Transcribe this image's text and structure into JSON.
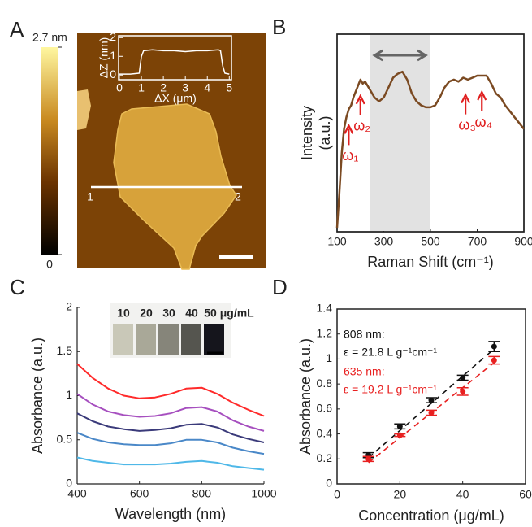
{
  "chart_data": [
    {
      "type": "afm",
      "label": "A",
      "colorbar": {
        "lim": [
          0,
          2.7
        ],
        "ticks": [
          0,
          {
            "value": 2.7,
            "label": "2.7 nm"
          }
        ]
      },
      "line_labels": [
        "1",
        "2"
      ],
      "inset": {
        "type": "line",
        "color": "#ffffff",
        "x": [
          0,
          0.5,
          0.9,
          1.0,
          1.1,
          1.5,
          2,
          2.5,
          3,
          3.5,
          4,
          4.5,
          4.6,
          4.7,
          4.8,
          5
        ],
        "values": [
          0.05,
          0.05,
          0.1,
          1.0,
          1.3,
          1.35,
          1.3,
          1.3,
          1.25,
          1.3,
          1.3,
          1.35,
          1.3,
          0.5,
          0.1,
          0.05
        ],
        "xlim": [
          0,
          5.1
        ],
        "xticks": [
          0,
          1,
          2,
          3,
          4,
          5
        ],
        "ylim": [
          -0.25,
          2.1
        ],
        "yticks": [
          0,
          1,
          2
        ],
        "xlabel": "ΔX (μm)",
        "ylabel": "ΔZ (nm)"
      }
    },
    {
      "type": "line",
      "label": "B",
      "xlabel": "Raman Shift (cm⁻¹)",
      "ylabel": [
        "Intensity",
        "(a.u.)"
      ],
      "xlim": [
        100,
        900
      ],
      "xticks": [
        100,
        300,
        500,
        700,
        900
      ],
      "ylim": [
        0,
        1
      ],
      "highlight": [
        240,
        500
      ],
      "series": [
        {
          "color": "#7b4a22",
          "x": [
            100,
            110,
            120,
            130,
            140,
            150,
            160,
            170,
            180,
            190,
            200,
            210,
            220,
            240,
            260,
            280,
            300,
            320,
            340,
            360,
            380,
            400,
            420,
            440,
            460,
            480,
            500,
            520,
            540,
            560,
            580,
            600,
            620,
            640,
            660,
            680,
            700,
            720,
            740,
            760,
            780,
            800,
            820,
            840,
            860,
            880,
            900
          ],
          "values": [
            0.02,
            0.2,
            0.4,
            0.52,
            0.58,
            0.62,
            0.64,
            0.68,
            0.71,
            0.74,
            0.77,
            0.75,
            0.76,
            0.72,
            0.68,
            0.66,
            0.68,
            0.73,
            0.78,
            0.8,
            0.81,
            0.77,
            0.7,
            0.66,
            0.64,
            0.63,
            0.63,
            0.64,
            0.68,
            0.73,
            0.76,
            0.77,
            0.76,
            0.78,
            0.77,
            0.78,
            0.79,
            0.79,
            0.79,
            0.75,
            0.7,
            0.68,
            0.64,
            0.61,
            0.58,
            0.55,
            0.52
          ]
        }
      ],
      "annotations": [
        {
          "text": "ω₁",
          "x": 150
        },
        {
          "text": "ω₂",
          "x": 200
        },
        {
          "text": "ω₃",
          "x": 650
        },
        {
          "text": "ω₄",
          "x": 720
        }
      ],
      "annotation_color": "#e02020"
    },
    {
      "type": "line",
      "label": "C",
      "xlabel": "Wavelength (nm)",
      "ylabel": "Absorbance (a.u.)",
      "xlim": [
        400,
        1000
      ],
      "xticks": [
        400,
        600,
        800,
        1000
      ],
      "ylim": [
        0,
        2
      ],
      "yticks": [
        0,
        0.5,
        1,
        1.5,
        2
      ],
      "inset_labels": [
        "10",
        "20",
        "30",
        "40",
        "50 μg/mL"
      ],
      "series": [
        {
          "color": "#ff2a2a",
          "x": [
            400,
            450,
            500,
            550,
            600,
            650,
            700,
            750,
            800,
            850,
            900,
            950,
            1000
          ],
          "values": [
            1.36,
            1.2,
            1.08,
            1.0,
            0.97,
            0.98,
            1.02,
            1.08,
            1.09,
            1.02,
            0.92,
            0.84,
            0.77
          ]
        },
        {
          "color": "#a64fbf",
          "x": [
            400,
            450,
            500,
            550,
            600,
            650,
            700,
            750,
            800,
            850,
            900,
            950,
            1000
          ],
          "values": [
            1.02,
            0.9,
            0.82,
            0.78,
            0.76,
            0.77,
            0.8,
            0.86,
            0.87,
            0.82,
            0.72,
            0.65,
            0.6
          ]
        },
        {
          "color": "#3a3a7a",
          "x": [
            400,
            450,
            500,
            550,
            600,
            650,
            700,
            750,
            800,
            850,
            900,
            950,
            1000
          ],
          "values": [
            0.8,
            0.71,
            0.65,
            0.62,
            0.6,
            0.61,
            0.63,
            0.67,
            0.68,
            0.64,
            0.56,
            0.51,
            0.47
          ]
        },
        {
          "color": "#4a88c8",
          "x": [
            400,
            450,
            500,
            550,
            600,
            650,
            700,
            750,
            800,
            850,
            900,
            950,
            1000
          ],
          "values": [
            0.58,
            0.51,
            0.47,
            0.45,
            0.44,
            0.44,
            0.46,
            0.5,
            0.5,
            0.47,
            0.41,
            0.37,
            0.34
          ]
        },
        {
          "color": "#4fb8e8",
          "x": [
            400,
            450,
            500,
            550,
            600,
            650,
            700,
            750,
            800,
            850,
            900,
            950,
            1000
          ],
          "values": [
            0.3,
            0.26,
            0.24,
            0.22,
            0.22,
            0.22,
            0.23,
            0.25,
            0.26,
            0.24,
            0.2,
            0.18,
            0.16
          ]
        }
      ]
    },
    {
      "type": "scatter",
      "label": "D",
      "xlabel": "Concentration (μg/mL)",
      "ylabel": "Absorbance (a.u.)",
      "xlim": [
        0,
        60
      ],
      "xticks": [
        0,
        20,
        40,
        60
      ],
      "ylim": [
        0,
        1.4
      ],
      "yticks": [
        0,
        0.2,
        0.4,
        0.6,
        0.8,
        1,
        1.2,
        1.4
      ],
      "series": [
        {
          "name": "808 nm:",
          "label": "ε = 21.8 L g⁻¹cm⁻¹",
          "color": "#111111",
          "x": [
            10,
            20,
            30,
            40,
            50
          ],
          "values": [
            0.23,
            0.46,
            0.67,
            0.85,
            1.1
          ],
          "errors": [
            0.02,
            0.02,
            0.02,
            0.02,
            0.04
          ],
          "fit": {
            "x": [
              10,
              50
            ],
            "values": [
              0.21,
              1.08
            ]
          }
        },
        {
          "name": "635 nm:",
          "label": "ε = 19.2 L g⁻¹cm⁻¹",
          "color": "#e82020",
          "x": [
            10,
            20,
            30,
            40,
            50
          ],
          "values": [
            0.2,
            0.39,
            0.57,
            0.74,
            0.99
          ],
          "errors": [
            0.02,
            0.01,
            0.02,
            0.03,
            0.03
          ],
          "fit": {
            "x": [
              10,
              50
            ],
            "values": [
              0.17,
              0.97
            ]
          }
        }
      ]
    }
  ]
}
